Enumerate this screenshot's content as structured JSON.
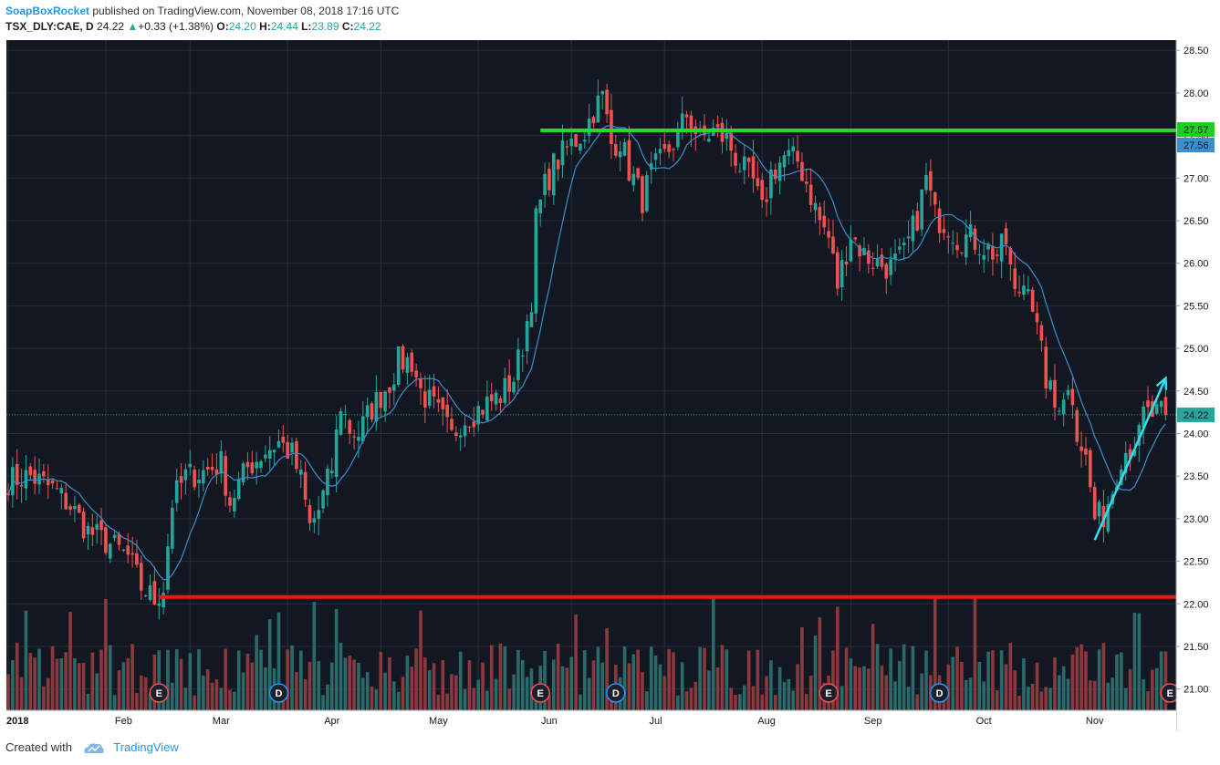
{
  "header": {
    "author": "SoapBoxRocket",
    "published_text": "published on TradingView.com, November 08, 2018 17:16 UTC",
    "symbol": "TSX_DLY:CAE, D",
    "last": "24.22",
    "change": "+0.33 (+1.38%)",
    "o_label": "O:",
    "o_val": "24.20",
    "h_label": "H:",
    "h_val": "24.44",
    "l_label": "L:",
    "l_val": "23.89",
    "c_label": "C:",
    "c_val": "24.22"
  },
  "footer": {
    "created_with": "Created with",
    "brand": "TradingView"
  },
  "colors": {
    "background": "#131722",
    "up": "#26a69a",
    "down": "#ef5350",
    "resistance": "#22dd22",
    "support": "#ff1111",
    "arrow": "#33ddee",
    "ma": "#3a8fcc"
  },
  "chart_data": {
    "type": "candlestick",
    "y_ticks": [
      "28.50",
      "28.00",
      "27.50",
      "27.00",
      "26.50",
      "26.00",
      "25.50",
      "25.00",
      "24.50",
      "24.00",
      "23.50",
      "23.00",
      "22.50",
      "22.00",
      "21.50",
      "21.00"
    ],
    "ylim": [
      20.75,
      28.62
    ],
    "x_tick_labels": [
      "2018",
      "Feb",
      "Mar",
      "Apr",
      "May",
      "Jun",
      "Jul",
      "Aug",
      "Sep",
      "Oct",
      "Nov"
    ],
    "price_labels": [
      {
        "text": "27.57",
        "value": 27.57,
        "color": "#22cc22"
      },
      {
        "text": "27.56",
        "value": 27.56,
        "color": "#3a8fcc"
      },
      {
        "text": "24.22",
        "value": 24.22,
        "color": "#26a69a"
      }
    ],
    "last_price": 24.22,
    "resistance": {
      "value": 27.56,
      "from_index": 120,
      "to_index": 300
    },
    "support": {
      "value": 22.08,
      "from_index": 34,
      "to_index": 300
    },
    "arrow": {
      "from": [
        245,
        22.75
      ],
      "to": [
        261,
        24.65
      ]
    },
    "events": [
      {
        "label": "E",
        "index": 34,
        "type": "earnings"
      },
      {
        "label": "D",
        "index": 61,
        "type": "dividend"
      },
      {
        "label": "E",
        "index": 120,
        "type": "earnings"
      },
      {
        "label": "D",
        "index": 137,
        "type": "dividend"
      },
      {
        "label": "E",
        "index": 185,
        "type": "earnings"
      },
      {
        "label": "D",
        "index": 210,
        "type": "dividend"
      },
      {
        "label": "E",
        "index": 262,
        "type": "earnings"
      }
    ],
    "anchors": [
      [
        0,
        23.45
      ],
      [
        5,
        23.5
      ],
      [
        10,
        23.35
      ],
      [
        14,
        23.15
      ],
      [
        18,
        22.85
      ],
      [
        23,
        22.7
      ],
      [
        27,
        22.55
      ],
      [
        30,
        22.2
      ],
      [
        33,
        22.05
      ],
      [
        35,
        22.2
      ],
      [
        37,
        23.2
      ],
      [
        40,
        23.5
      ],
      [
        44,
        23.55
      ],
      [
        48,
        23.65
      ],
      [
        50,
        23.2
      ],
      [
        54,
        23.6
      ],
      [
        58,
        23.8
      ],
      [
        61,
        23.9
      ],
      [
        64,
        23.75
      ],
      [
        66,
        23.45
      ],
      [
        68,
        22.9
      ],
      [
        70,
        23.1
      ],
      [
        73,
        23.6
      ],
      [
        75,
        24.35
      ],
      [
        77,
        24.05
      ],
      [
        79,
        24.0
      ],
      [
        82,
        24.3
      ],
      [
        86,
        24.6
      ],
      [
        88,
        24.85
      ],
      [
        91,
        24.85
      ],
      [
        93,
        24.5
      ],
      [
        96,
        24.3
      ],
      [
        98,
        24.15
      ],
      [
        100,
        23.95
      ],
      [
        102,
        24.15
      ],
      [
        105,
        24.25
      ],
      [
        108,
        24.35
      ],
      [
        111,
        24.45
      ],
      [
        114,
        24.65
      ],
      [
        116,
        25.05
      ],
      [
        118,
        25.6
      ],
      [
        119,
        26.5
      ],
      [
        121,
        26.9
      ],
      [
        123,
        27.15
      ],
      [
        127,
        27.4
      ],
      [
        130,
        27.55
      ],
      [
        132,
        27.8
      ],
      [
        134,
        27.95
      ],
      [
        136,
        27.4
      ],
      [
        138,
        27.45
      ],
      [
        140,
        27.1
      ],
      [
        143,
        26.75
      ],
      [
        145,
        27.05
      ],
      [
        148,
        27.25
      ],
      [
        151,
        27.5
      ],
      [
        153,
        27.75
      ],
      [
        156,
        27.45
      ],
      [
        159,
        27.55
      ],
      [
        162,
        27.45
      ],
      [
        165,
        27.15
      ],
      [
        168,
        26.95
      ],
      [
        170,
        26.6
      ],
      [
        172,
        27.05
      ],
      [
        175,
        27.25
      ],
      [
        178,
        27.2
      ],
      [
        180,
        26.95
      ],
      [
        183,
        26.5
      ],
      [
        185,
        26.3
      ],
      [
        187,
        25.75
      ],
      [
        190,
        26.35
      ],
      [
        193,
        26.1
      ],
      [
        196,
        26.0
      ],
      [
        199,
        25.95
      ],
      [
        202,
        26.1
      ],
      [
        205,
        26.55
      ],
      [
        207,
        27.0
      ],
      [
        209,
        26.55
      ],
      [
        212,
        26.45
      ],
      [
        214,
        26.3
      ],
      [
        217,
        26.3
      ],
      [
        220,
        26.2
      ],
      [
        223,
        26.1
      ],
      [
        225,
        26.25
      ],
      [
        227,
        25.6
      ],
      [
        230,
        25.85
      ],
      [
        232,
        25.2
      ],
      [
        234,
        24.65
      ],
      [
        236,
        24.3
      ],
      [
        238,
        24.5
      ],
      [
        240,
        24.45
      ],
      [
        241,
        24.05
      ],
      [
        243,
        23.7
      ],
      [
        245,
        23.0
      ],
      [
        247,
        23.05
      ],
      [
        249,
        23.35
      ],
      [
        251,
        23.75
      ],
      [
        253,
        23.85
      ],
      [
        255,
        23.95
      ],
      [
        256,
        24.22
      ]
    ]
  }
}
